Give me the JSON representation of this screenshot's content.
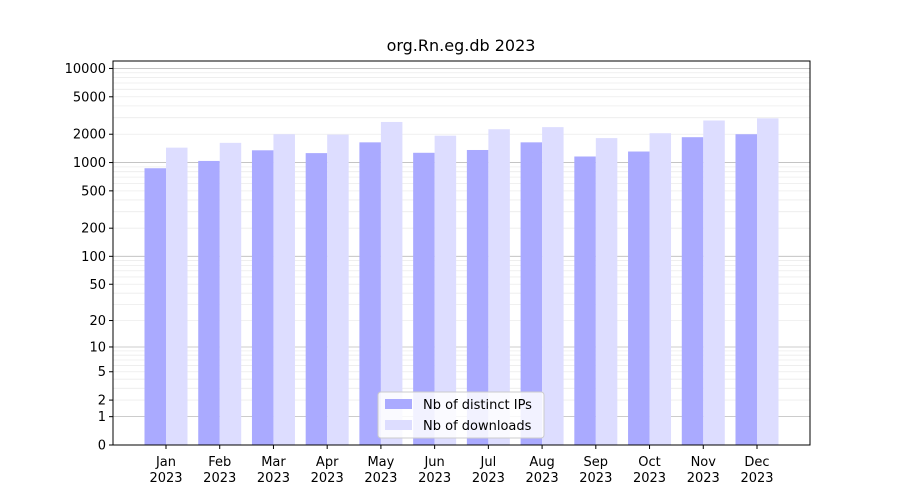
{
  "chart_data": {
    "type": "bar",
    "title": "org.Rn.eg.db 2023",
    "xlabel": "",
    "ylabel": "",
    "y_scale": "symlog",
    "ylim": [
      0,
      12000
    ],
    "grid": true,
    "legend_position": "lower center",
    "categories": [
      "Jan\n2023",
      "Feb\n2023",
      "Mar\n2023",
      "Apr\n2023",
      "May\n2023",
      "Jun\n2023",
      "Jul\n2023",
      "Aug\n2023",
      "Sep\n2023",
      "Oct\n2023",
      "Nov\n2023",
      "Dec\n2023"
    ],
    "y_ticks": [
      0,
      1,
      2,
      5,
      10,
      20,
      50,
      100,
      200,
      500,
      1000,
      2000,
      5000,
      10000
    ],
    "y_tick_labels": [
      "0",
      "1",
      "2",
      "5",
      "10",
      "20",
      "50",
      "100",
      "200",
      "500",
      "1000",
      "2000",
      "5000",
      "10000"
    ],
    "series": [
      {
        "name": "Nb of distinct IPs",
        "color": "#aaaaff",
        "values": [
          870,
          1040,
          1350,
          1260,
          1640,
          1270,
          1360,
          1640,
          1160,
          1310,
          1860,
          2000
        ]
      },
      {
        "name": "Nb of downloads",
        "color": "#ddddff",
        "values": [
          1440,
          1620,
          2000,
          1980,
          2700,
          1930,
          2260,
          2380,
          1820,
          2050,
          2800,
          2950
        ]
      }
    ]
  }
}
